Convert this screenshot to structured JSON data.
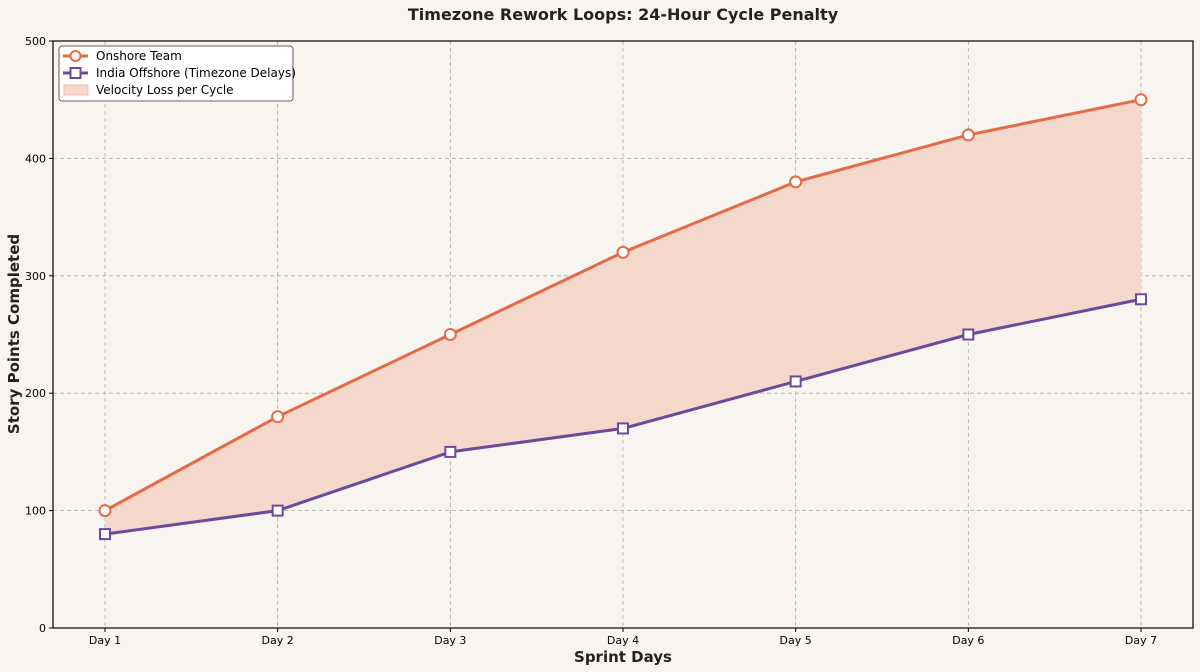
{
  "chart_data": {
    "type": "line",
    "title": "Timezone Rework Loops: 24-Hour Cycle Penalty",
    "xlabel": "Sprint Days",
    "ylabel": "Story Points Completed",
    "categories": [
      "Day 1",
      "Day 2",
      "Day 3",
      "Day 4",
      "Day 5",
      "Day 6",
      "Day 7"
    ],
    "ylim": [
      0,
      500
    ],
    "yticks": [
      0,
      100,
      200,
      300,
      400,
      500
    ],
    "grid": true,
    "legend_position": "top-left",
    "series": [
      {
        "name": "Onshore Team",
        "values": [
          100,
          180,
          250,
          320,
          380,
          420,
          450
        ],
        "color": "#e36b47",
        "marker": "circle"
      },
      {
        "name": "India Offshore (Timezone Delays)",
        "values": [
          80,
          100,
          150,
          170,
          210,
          250,
          280
        ],
        "color": "#6a4a9c",
        "marker": "square"
      }
    ],
    "fill_between": {
      "name": "Velocity Loss per Cycle",
      "color": "#f5d8cc",
      "edge_color": "#e8b3a5"
    },
    "background": "#f8f4f0"
  }
}
